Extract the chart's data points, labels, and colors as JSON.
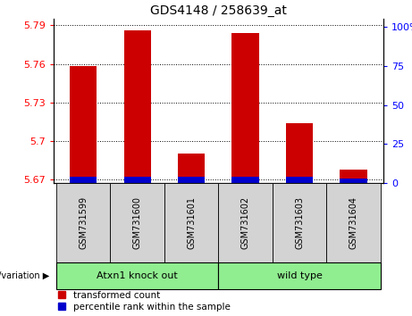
{
  "title": "GDS4148 / 258639_at",
  "categories": [
    "GSM731599",
    "GSM731600",
    "GSM731601",
    "GSM731602",
    "GSM731603",
    "GSM731604"
  ],
  "red_values": [
    5.758,
    5.786,
    5.69,
    5.784,
    5.714,
    5.678
  ],
  "blue_values": [
    5.672,
    5.672,
    5.672,
    5.672,
    5.672,
    5.671
  ],
  "baseline": 5.667,
  "ylim_left": [
    5.667,
    5.795
  ],
  "yticks_left": [
    5.67,
    5.7,
    5.73,
    5.76,
    5.79
  ],
  "yticks_right": [
    0,
    25,
    50,
    75,
    100
  ],
  "group1_label": "Atxn1 knock out",
  "group2_label": "wild type",
  "group1_indices": [
    0,
    1,
    2
  ],
  "group2_indices": [
    3,
    4,
    5
  ],
  "legend_red": "transformed count",
  "legend_blue": "percentile rank within the sample",
  "genotype_label": "genotype/variation",
  "bg_color": "#d3d3d3",
  "group_color": "#90ee90",
  "bar_width": 0.5,
  "red_color": "#cc0000",
  "blue_color": "#0000cc"
}
